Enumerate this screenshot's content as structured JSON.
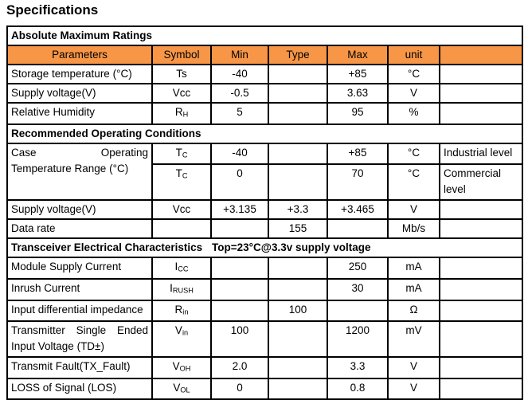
{
  "page": {
    "title": "Specifications"
  },
  "colors": {
    "header_fill": "#F79646",
    "border": "#000000",
    "text": "#000000"
  },
  "table": {
    "columns": [
      "Parameters",
      "Symbol",
      "Min",
      "Type",
      "Max",
      "unit",
      ""
    ],
    "sections": [
      {
        "title": "Absolute Maximum Ratings",
        "subtitle": "",
        "column_header": true,
        "rows": [
          {
            "parameter": "Storage temperature (°C)",
            "symbol": {
              "main": "Ts",
              "sub": ""
            },
            "min": "-40",
            "type": "",
            "max": "+85",
            "unit": "°C",
            "note": ""
          },
          {
            "parameter": "Supply voltage(V)",
            "symbol": {
              "main": "Vcc",
              "sub": ""
            },
            "min": "-0.5",
            "type": "",
            "max": "3.63",
            "unit": "V",
            "note": ""
          },
          {
            "parameter": "Relative Humidity",
            "symbol": {
              "main": "R",
              "sub": "H"
            },
            "min": "5",
            "type": "",
            "max": "95",
            "unit": "%",
            "note": ""
          }
        ]
      },
      {
        "title": "Recommended Operating Conditions",
        "subtitle": "",
        "column_header": false,
        "rows": [
          {
            "parameter": "Case Operating Temperature Range (°C)",
            "param_rowspan": 2,
            "justify": true,
            "symbol": {
              "main": "T",
              "sub": "C"
            },
            "min": "-40",
            "type": "",
            "max": "+85",
            "unit": "°C",
            "note": "Industrial level"
          },
          {
            "parameter": null,
            "tall": true,
            "symbol": {
              "main": "T",
              "sub": "C"
            },
            "min": "0",
            "type": "",
            "max": "70",
            "unit": "°C",
            "note": "Commercial level"
          },
          {
            "parameter": "Supply voltage(V)",
            "symbol": {
              "main": "Vcc",
              "sub": ""
            },
            "min": "+3.135",
            "type": "+3.3",
            "max": "+3.465",
            "unit": "V",
            "note": ""
          },
          {
            "parameter": "Data rate",
            "symbol": {
              "main": "",
              "sub": ""
            },
            "min": "",
            "type": "155",
            "max": "",
            "unit": "Mb/s",
            "note": ""
          }
        ]
      },
      {
        "title": "Transceiver Electrical Characteristics",
        "subtitle": "Top=23°C@3.3v supply voltage",
        "column_header": false,
        "rows": [
          {
            "parameter": "Module Supply Current",
            "symbol": {
              "main": "I",
              "sub": "CC"
            },
            "min": "",
            "type": "",
            "max": "250",
            "unit": "mA",
            "note": ""
          },
          {
            "parameter": "Inrush Current",
            "symbol": {
              "main": "I",
              "sub": "RUSH"
            },
            "min": "",
            "type": "",
            "max": "30",
            "unit": "mA",
            "note": ""
          },
          {
            "parameter": "Input differential impedance",
            "symbol": {
              "main": "R",
              "sub": "in"
            },
            "min": "",
            "type": "100",
            "max": "",
            "unit": "Ω",
            "note": ""
          },
          {
            "parameter": "Transmitter Single Ended Input Voltage (TD±)",
            "justify": true,
            "tall": true,
            "symbol": {
              "main": "V",
              "sub": "in"
            },
            "min": "100",
            "type": "",
            "max": "1200",
            "unit": "mV",
            "note": ""
          },
          {
            "parameter": "Transmit Fault(TX_Fault)",
            "symbol": {
              "main": "V",
              "sub": "OH"
            },
            "min": "2.0",
            "type": "",
            "max": "3.3",
            "unit": "V",
            "note": ""
          },
          {
            "parameter": "LOSS of Signal (LOS)",
            "symbol": {
              "main": "V",
              "sub": "OL"
            },
            "min": "0",
            "type": "",
            "max": "0.8",
            "unit": "V",
            "note": ""
          }
        ]
      }
    ]
  }
}
